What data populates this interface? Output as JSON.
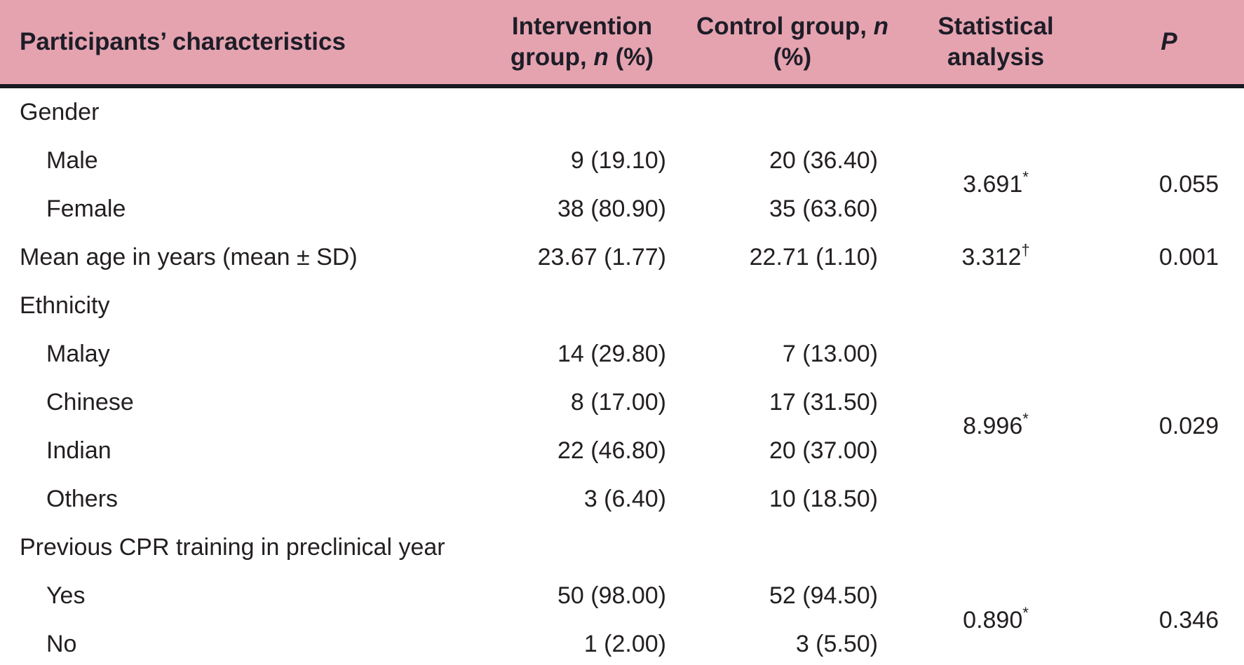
{
  "colors": {
    "header_bg": "#e5a3b0",
    "border": "#191922",
    "text": "#231f20"
  },
  "table": {
    "headers": {
      "characteristics": "Participants’ characteristics",
      "intervention": {
        "pre": "Intervention group, ",
        "n": "n",
        "post": " (%)"
      },
      "control": {
        "pre": "Control group, ",
        "n": "n",
        "post": " (%)"
      },
      "statistical": "Statistical analysis",
      "p": "P"
    },
    "rows": [
      {
        "label": "Gender"
      },
      {
        "label": "Male",
        "intervention": "9 (19.10)",
        "control": "20 (36.40)",
        "stat": "3.691",
        "stat_sup": "*",
        "p": "0.055"
      },
      {
        "label": "Female",
        "intervention": "38 (80.90)",
        "control": "35 (63.60)"
      },
      {
        "label": "Mean age in years (mean ± SD)",
        "intervention": "23.67 (1.77)",
        "control": "22.71 (1.10)",
        "stat": "3.312",
        "stat_sup": "†",
        "p": "0.001"
      },
      {
        "label": "Ethnicity"
      },
      {
        "label": "Malay",
        "intervention": "14 (29.80)",
        "control": "7 (13.00)",
        "stat": "8.996",
        "stat_sup": "*",
        "p": "0.029"
      },
      {
        "label": "Chinese",
        "intervention": "8 (17.00)",
        "control": "17 (31.50)"
      },
      {
        "label": "Indian",
        "intervention": "22 (46.80)",
        "control": "20 (37.00)"
      },
      {
        "label": "Others",
        "intervention": "3 (6.40)",
        "control": "10 (18.50)"
      },
      {
        "label": "Previous CPR training in preclinical year"
      },
      {
        "label": "Yes",
        "intervention": "50 (98.00)",
        "control": "52 (94.50)",
        "stat": "0.890",
        "stat_sup": "*",
        "p": "0.346"
      },
      {
        "label": "No",
        "intervention": "1 (2.00)",
        "control": "3 (5.50)"
      }
    ]
  }
}
